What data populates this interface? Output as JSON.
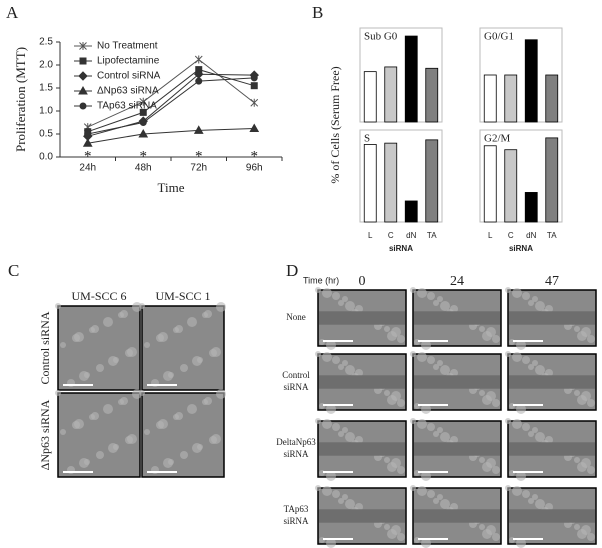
{
  "chart_data": [
    {
      "type": "line",
      "x_label": "Time",
      "y_label": "Proliferation (MTT)",
      "categories": [
        "24h",
        "48h",
        "72h",
        "96h"
      ],
      "ylim": [
        0,
        2.5
      ],
      "yticks": [
        {
          "value": 0,
          "label": "0.0"
        },
        0.5,
        {
          "value": 1,
          "label": "1.0"
        },
        1.5,
        {
          "value": 2,
          "label": "2.0"
        },
        2.5
      ],
      "series": [
        {
          "name": "No Treatment",
          "color": "#555555",
          "marker": "x",
          "values": [
            0.65,
            1.2,
            2.12,
            1.18
          ]
        },
        {
          "name": "Lipofectamine",
          "color": "#333333",
          "marker": "square",
          "values": [
            0.55,
            0.97,
            1.9,
            1.55
          ]
        },
        {
          "name": "Control siRNA",
          "color": "#333333",
          "marker": "diamond",
          "values": [
            0.45,
            0.78,
            1.8,
            1.78
          ]
        },
        {
          "name": "ΔNp63 siRNA",
          "color": "#333333",
          "marker": "triangle",
          "values": [
            0.3,
            0.5,
            0.58,
            0.62
          ]
        },
        {
          "name": "TAp63 siRNA",
          "color": "#333333",
          "marker": "circle",
          "values": [
            0.5,
            0.75,
            1.65,
            1.72
          ]
        }
      ],
      "annotations": [
        "*",
        "*",
        "*",
        "*"
      ]
    },
    {
      "type": "bar",
      "title": "Sub G0",
      "categories": [
        null,
        null,
        null,
        null
      ],
      "values": [
        7.5,
        8.2,
        12.8,
        8
      ],
      "ylim": [
        0,
        14
      ],
      "colors": [
        "#ffffff",
        "#c8c8c8",
        "#000000",
        "#808080"
      ]
    },
    {
      "type": "bar",
      "title": "G0/G1",
      "categories": [
        null,
        null,
        null,
        null
      ],
      "values": [
        64,
        64,
        82,
        64
      ],
      "ylim": [
        40,
        88
      ],
      "colors": [
        "#ffffff",
        "#c8c8c8",
        "#000000",
        "#808080"
      ]
    },
    {
      "type": "bar",
      "title": "S",
      "x_label": "siRNA",
      "categories": [
        "L",
        "C",
        "dN",
        "TA"
      ],
      "values": [
        11.8,
        12,
        3.2,
        12.5
      ],
      "ylim": [
        0,
        14
      ],
      "colors": [
        "#ffffff",
        "#c8c8c8",
        "#000000",
        "#808080"
      ]
    },
    {
      "type": "bar",
      "title": "G2/M",
      "x_label": "siRNA",
      "categories": [
        "L",
        "C",
        "dN",
        "TA"
      ],
      "values": [
        11.6,
        11,
        4.5,
        12.8
      ],
      "ylim": [
        0,
        14
      ],
      "colors": [
        "#ffffff",
        "#c8c8c8",
        "#000000",
        "#808080"
      ]
    }
  ],
  "panel_labels": [
    "A",
    "B",
    "C",
    "D"
  ],
  "panel_b": {
    "y_label": "% of Cells (Serum Free)"
  },
  "panel_c": {
    "columns": [
      "UM-SCC 6",
      "UM-SCC 1"
    ],
    "rows": [
      "Control siRNA",
      "ΔNp63 siRNA"
    ]
  },
  "panel_d": {
    "time_label": "Time (hr)",
    "columns": [
      "0",
      "24",
      "47"
    ],
    "rows": [
      [
        "None"
      ],
      [
        "Control",
        "siRNA"
      ],
      [
        "DeltaNp63",
        "siRNA"
      ],
      [
        "TAp63",
        "siRNA"
      ]
    ]
  }
}
